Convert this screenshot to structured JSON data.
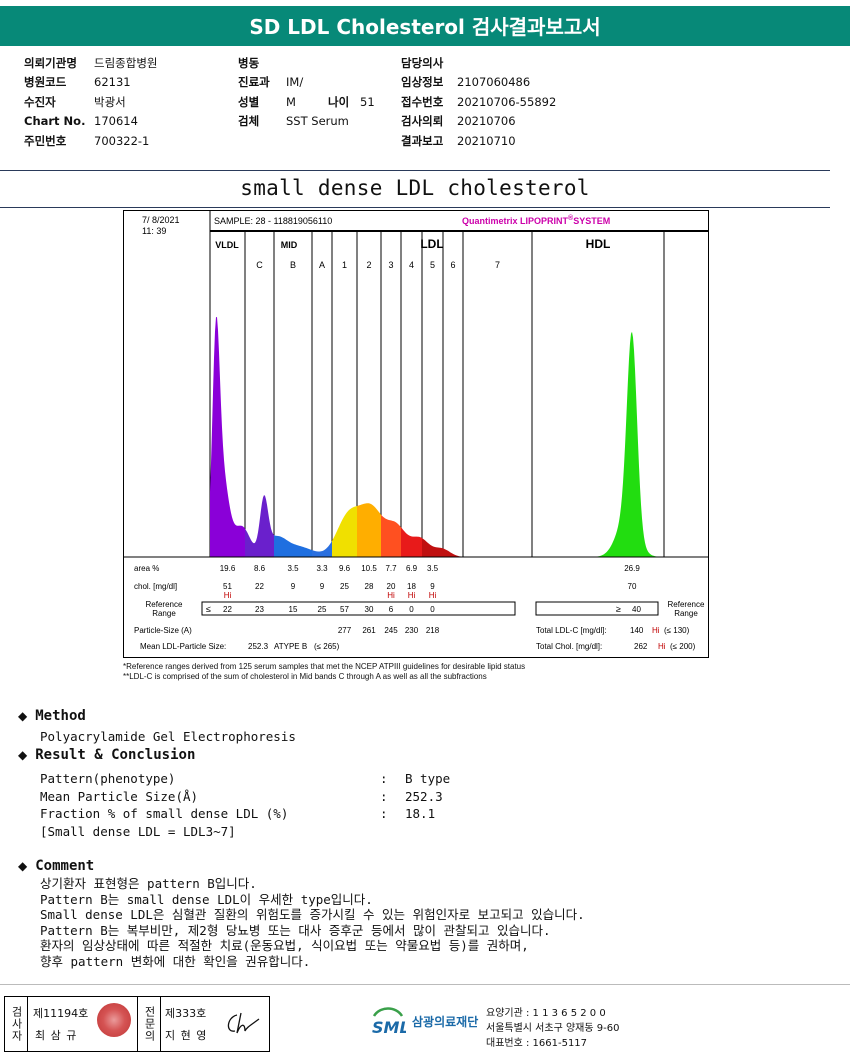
{
  "report": {
    "title": "SD LDL Cholesterol 검사결과보고서",
    "subtitle": "small dense LDL cholesterol"
  },
  "patient_info": {
    "col1": [
      {
        "label": "의뢰기관명",
        "value": "드림종합병원"
      },
      {
        "label": "병원코드",
        "value": "62131"
      },
      {
        "label": "수진자",
        "value": "박광서"
      },
      {
        "label": "Chart No.",
        "value": "170614"
      },
      {
        "label": "주민번호",
        "value": "700322-1"
      }
    ],
    "col2": [
      {
        "label": "병동",
        "value": ""
      },
      {
        "label": "진료과",
        "value": "IM/"
      },
      {
        "label": "성별",
        "value": "M"
      },
      {
        "label": "검체",
        "value": "SST Serum"
      }
    ],
    "age": {
      "label": "나이",
      "value": "51"
    },
    "col3": [
      {
        "label": "담당의사",
        "value": ""
      },
      {
        "label": "임상정보",
        "value": "2107060486"
      },
      {
        "label": "접수번호",
        "value": "20210706-55892"
      },
      {
        "label": "검사의뢰",
        "value": "20210706"
      },
      {
        "label": "결과보고",
        "value": "20210710"
      }
    ]
  },
  "chart_data": {
    "type": "area",
    "date": "7/ 8/2021",
    "time": "11: 39",
    "sample": "SAMPLE:  28 - 118819056110",
    "system": "Quantimetrix LIPOPRINT",
    "system_suffix": "SYSTEM",
    "system_mark": "®",
    "groups": [
      "VLDL",
      "MID",
      "LDL",
      "HDL"
    ],
    "bands": [
      "C",
      "B",
      "A",
      "1",
      "2",
      "3",
      "4",
      "5",
      "6",
      "7"
    ],
    "row_labels": {
      "area": "area %",
      "chol": "chol. [mg/dl]",
      "ref": [
        "Reference",
        "Range"
      ],
      "particle": "Particle-Size (A)",
      "mean": "Mean LDL-Particle Size:"
    },
    "area_pct": {
      "VLDL": 19.6,
      "C": 8.6,
      "B": 3.5,
      "A": 3.3,
      "1": 9.6,
      "2": 10.5,
      "3": 7.7,
      "4": 6.9,
      "5": 3.5,
      "HDL": 26.9
    },
    "chol": {
      "VLDL": 51,
      "C": 22,
      "B": 9,
      "A": 9,
      "1": 25,
      "2": 28,
      "3": 20,
      "4": 18,
      "5": 9,
      "HDL": 70
    },
    "hi_flag": "Hi",
    "hi_bands": [
      "VLDL",
      "3",
      "4",
      "5"
    ],
    "reference_range": {
      "prefix": "≤",
      "VLDL": 22,
      "C": 23,
      "B": 15,
      "A": 25,
      "1": 57,
      "2": 30,
      "3": 6,
      "4": 0,
      "5": 0,
      "HDL_prefix": "≥",
      "HDL": 40
    },
    "particle_size": {
      "1": 277,
      "2": 261,
      "3": 245,
      "4": 230,
      "5": 218
    },
    "mean_size": {
      "value": "252.3",
      "status": "ATYPE B",
      "limit": "(≤ 265)"
    },
    "total_ldl": {
      "label": "Total LDL-C [mg/dl]:",
      "value": "140",
      "flag": "Hi",
      "limit": "(≤ 130)"
    },
    "total_chol": {
      "label": "Total Chol. [mg/dl]:",
      "value": "262",
      "flag": "Hi",
      "limit": "(≤ 200)"
    },
    "colors": {
      "vldl": "#8a00d8",
      "c": "#6a20cc",
      "b": "#1f6fe0",
      "a": "#2a6fdf",
      "b1": "#f0e000",
      "b2": "#ffae00",
      "b3": "#ff5020",
      "b4": "#e81a1a",
      "b5": "#c01010",
      "hdl": "#22dd10",
      "title": "#cc00aa"
    }
  },
  "notes": [
    "*Reference ranges derived from 125 serum samples that met the NCEP ATPIII guidelines for desirable lipid status",
    "**LDL-C is comprised of the sum of cholesterol in Mid bands C through A as well as all the subfractions"
  ],
  "method": {
    "heading": "Method",
    "text": "Polyacrylamide Gel Electrophoresis"
  },
  "result": {
    "heading": "Result & Conclusion",
    "rows": [
      {
        "label": "Pattern(phenotype)",
        "value": "B type"
      },
      {
        "label": "Mean Particle Size(Å)",
        "value": "252.3"
      },
      {
        "label": "Fraction % of small dense LDL (%)",
        "value": "18.1"
      }
    ],
    "note": "[Small dense LDL = LDL3~7]"
  },
  "comment": {
    "heading": "Comment",
    "lines": [
      "상기환자 표현형은 pattern B입니다.",
      "Pattern B는 small dense LDL이 우세한 type입니다.",
      "Small dense LDL은 심혈관 질환의 위험도를 증가시킬 수 있는 위험인자로 보고되고 있습니다.",
      "Pattern B는 복부비만, 제2형 당뇨병 또는 대사 증후군 등에서 많이 관찰되고 있습니다.",
      "환자의 임상상태에 따른 적절한 치료(운동요법, 식이요법 또는 약물요법 등)를 권하며,",
      "향후 pattern 변화에 대한 확인을 권유합니다."
    ]
  },
  "footer": {
    "inspector_label": "검사자",
    "inspector_no": "제11194호",
    "inspector_name": "최 삼 규",
    "specialist_label": "전문의",
    "specialist_no": "제333호",
    "specialist_name": "지 현 영",
    "org_mark": "SML",
    "org_name": "삼광의료재단",
    "contact": [
      "요양기관 : 1 1 3 6 5 2 0 0",
      "서울특별시 서초구 양재동 9-60",
      "대표번호 : 1661-5117"
    ]
  }
}
